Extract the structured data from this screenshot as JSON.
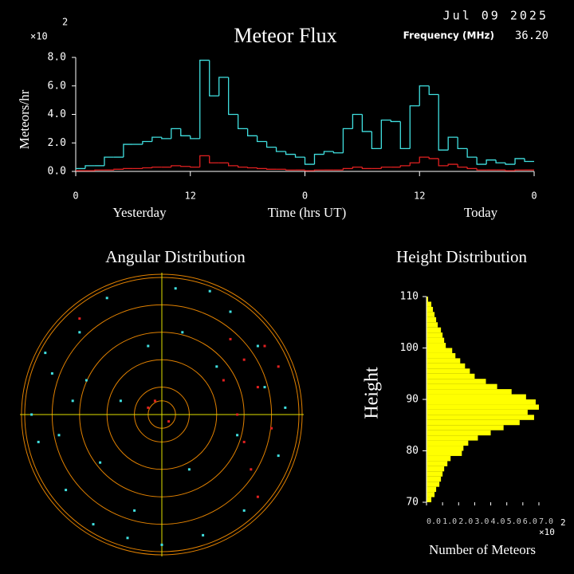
{
  "chart_data": [
    {
      "type": "step",
      "title": "Meteor Flux",
      "date": "Jul 09 2025",
      "frequency_label": "Frequency (MHz)",
      "frequency": "36.20",
      "y_label": "Meteors/hr",
      "y_multiplier": "×10",
      "y_exponent": 2,
      "x_label": "Time (hrs UT)",
      "x_left_label": "Yesterday",
      "x_right_label": "Today",
      "x": [
        0,
        1,
        2,
        3,
        4,
        5,
        6,
        7,
        8,
        9,
        10,
        11,
        12,
        13,
        14,
        15,
        16,
        17,
        18,
        19,
        20,
        21,
        22,
        23,
        24,
        25,
        26,
        27,
        28,
        29,
        30,
        31,
        32,
        33,
        34,
        35,
        36,
        37,
        38,
        39,
        40,
        41,
        42,
        43,
        44,
        45,
        46,
        47
      ],
      "xlim": [
        0,
        48
      ],
      "xticks": [
        0,
        12,
        {
          "value": 24,
          "label": "0"
        },
        {
          "value": 36,
          "label": "12"
        },
        {
          "value": 48,
          "label": "0"
        }
      ],
      "ylim": [
        0,
        8
      ],
      "yticks": [
        {
          "value": 0,
          "label": "0.0"
        },
        {
          "value": 2,
          "label": "2.0"
        },
        {
          "value": 4,
          "label": "4.0"
        },
        {
          "value": 6,
          "label": "6.0"
        },
        {
          "value": 8,
          "label": "8.0"
        }
      ],
      "series": [
        {
          "color": "#40e0e0",
          "values": [
            0.2,
            0.4,
            0.4,
            1.0,
            1.0,
            1.9,
            1.9,
            2.1,
            2.4,
            2.3,
            3.0,
            2.5,
            2.3,
            7.8,
            5.3,
            6.6,
            4.0,
            3.0,
            2.5,
            2.1,
            1.7,
            1.4,
            1.2,
            1.0,
            0.5,
            1.2,
            1.4,
            1.3,
            3.0,
            4.0,
            2.8,
            1.6,
            3.6,
            3.5,
            1.6,
            4.6,
            6.0,
            5.4,
            1.5,
            2.4,
            1.6,
            1.0,
            0.5,
            0.8,
            0.6,
            0.5,
            0.9,
            0.7
          ]
        },
        {
          "color": "#e02020",
          "values": [
            0.05,
            0.05,
            0.1,
            0.1,
            0.15,
            0.2,
            0.2,
            0.25,
            0.3,
            0.3,
            0.4,
            0.35,
            0.3,
            1.1,
            0.6,
            0.6,
            0.4,
            0.3,
            0.25,
            0.2,
            0.15,
            0.15,
            0.1,
            0.1,
            0.05,
            0.1,
            0.1,
            0.1,
            0.2,
            0.3,
            0.2,
            0.2,
            0.3,
            0.3,
            0.4,
            0.6,
            1.0,
            0.9,
            0.4,
            0.5,
            0.3,
            0.2,
            0.1,
            0.1,
            0.1,
            0.05,
            0.1,
            0.1
          ]
        }
      ]
    },
    {
      "type": "polar_scatter",
      "title": "Angular Distribution",
      "series": [
        {
          "color": "#40e0e0",
          "x": [
            -0.8,
            -0.6,
            -0.9,
            -0.4,
            -0.7,
            0.1,
            0.3,
            -0.2,
            0.5,
            0.7,
            0.85,
            0.6,
            -0.5,
            -0.85,
            -0.3,
            0.2,
            0.4,
            -0.65,
            0.75,
            -0.1,
            0.0,
            -0.45,
            0.55,
            -0.75,
            0.9,
            -0.95,
            0.35,
            -0.55,
            0.15,
            -0.25
          ],
          "y": [
            0.3,
            0.6,
            -0.2,
            0.85,
            -0.55,
            0.92,
            -0.88,
            -0.7,
            0.75,
            0.5,
            -0.3,
            -0.7,
            -0.8,
            0.45,
            0.1,
            -0.4,
            0.35,
            0.1,
            0.2,
            0.5,
            -0.95,
            -0.35,
            -0.15,
            -0.15,
            0.05,
            0.0,
            0.9,
            0.25,
            0.6,
            -0.9
          ]
        },
        {
          "color": "#e02020",
          "x": [
            0.6,
            0.7,
            0.5,
            0.8,
            0.65,
            0.55,
            0.75,
            -0.1,
            0.05,
            -0.6,
            0.45,
            0.7,
            0.85,
            -0.05,
            0.6
          ],
          "y": [
            0.4,
            0.2,
            0.55,
            -0.1,
            -0.4,
            0.0,
            0.5,
            0.05,
            -0.05,
            0.7,
            0.25,
            -0.6,
            0.35,
            0.1,
            -0.2
          ]
        }
      ]
    },
    {
      "type": "histogram",
      "orientation": "horizontal",
      "title": "Height Distribution",
      "y_label": "Height",
      "x_label": "Number of Meteors",
      "x_multiplier": "×10",
      "x_exponent": 2,
      "color": "#ffff00",
      "bins": [
        70,
        71,
        72,
        73,
        74,
        75,
        76,
        77,
        78,
        79,
        80,
        81,
        82,
        83,
        84,
        85,
        86,
        87,
        88,
        89,
        90,
        91,
        92,
        93,
        94,
        95,
        96,
        97,
        98,
        99,
        100,
        101,
        102,
        103,
        104,
        105,
        106,
        107,
        108,
        109,
        110
      ],
      "values": [
        0.3,
        0.5,
        0.6,
        0.8,
        0.9,
        1.0,
        1.1,
        1.3,
        1.5,
        2.2,
        2.3,
        2.6,
        3.2,
        4.0,
        4.8,
        5.8,
        6.7,
        6.3,
        7.0,
        6.8,
        6.2,
        5.3,
        4.4,
        3.7,
        3.0,
        2.7,
        2.4,
        2.1,
        1.8,
        1.6,
        1.2,
        1.1,
        1.0,
        0.9,
        0.7,
        0.6,
        0.5,
        0.4,
        0.3,
        0.1
      ],
      "xlim": [
        0,
        7.2
      ],
      "xticks": [
        {
          "value": 0,
          "label": "0.0"
        },
        {
          "value": 1,
          "label": "1.0"
        },
        {
          "value": 2,
          "label": "2.0"
        },
        {
          "value": 3,
          "label": "3.0"
        },
        {
          "value": 4,
          "label": "4.0"
        },
        {
          "value": 5,
          "label": "5.0"
        },
        {
          "value": 6,
          "label": "6.0"
        },
        {
          "value": 7,
          "label": "7.0"
        }
      ],
      "ylim": [
        70,
        110
      ],
      "yticks": [
        70,
        80,
        90,
        100,
        110
      ]
    }
  ]
}
